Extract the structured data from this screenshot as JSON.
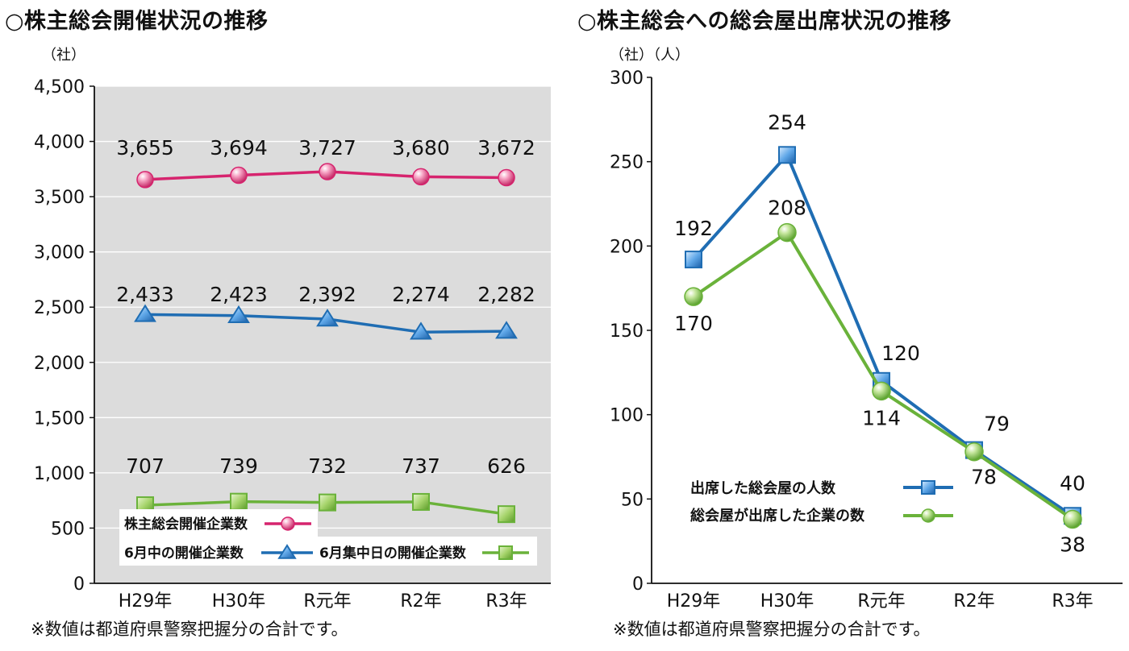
{
  "left": {
    "title": "○株主総会開催状況の推移",
    "note": "※数値は都道府県警察把握分の合計です。",
    "y_unit": "（社）"
  },
  "right": {
    "title": "○株主総会への総会屋出席状況の推移",
    "note": "※数値は都道府県警察把握分の合計です。",
    "y_unit": "（社）（人）"
  },
  "colors": {
    "pink": "#d6246e",
    "blue": "#1f6db3",
    "green": "#6ab23a",
    "plot_bg": "#dcdcdc"
  },
  "chart_data": [
    {
      "type": "line",
      "title": "○株主総会開催状況の推移",
      "ylabel": "（社）",
      "categories": [
        "H29年",
        "H30年",
        "R元年",
        "R2年",
        "R3年"
      ],
      "ylim": [
        0,
        4500
      ],
      "yticks": [
        "0",
        "500",
        "1,000",
        "1,500",
        "2,000",
        "2,500",
        "3,000",
        "3,500",
        "4,000",
        "4,500"
      ],
      "grid": true,
      "series": [
        {
          "name": "株主総会開催企業数",
          "values": [
            3655,
            3694,
            3727,
            3680,
            3672
          ],
          "labels": [
            "3,655",
            "3,694",
            "3,727",
            "3,680",
            "3,672"
          ],
          "color": "#d6246e",
          "marker": "circle"
        },
        {
          "name": "6月中の開催企業数",
          "values": [
            2433,
            2423,
            2392,
            2274,
            2282
          ],
          "labels": [
            "2,433",
            "2,423",
            "2,392",
            "2,274",
            "2,282"
          ],
          "color": "#1f6db3",
          "marker": "triangle"
        },
        {
          "name": "6月集中日の開催企業数",
          "values": [
            707,
            739,
            732,
            737,
            626
          ],
          "labels": [
            "707",
            "739",
            "732",
            "737",
            "626"
          ],
          "color": "#6ab23a",
          "marker": "square"
        }
      ],
      "legend": "bottom"
    },
    {
      "type": "line",
      "title": "○株主総会への総会屋出席状況の推移",
      "ylabel": "（社）（人）",
      "categories": [
        "H29年",
        "H30年",
        "R元年",
        "R2年",
        "R3年"
      ],
      "ylim": [
        0,
        300
      ],
      "yticks": [
        "0",
        "50",
        "100",
        "150",
        "200",
        "250",
        "300"
      ],
      "grid": false,
      "series": [
        {
          "name": "出席した総会屋の人数",
          "values": [
            192,
            254,
            120,
            79,
            40
          ],
          "labels": [
            "192",
            "254",
            "120",
            "79",
            "40"
          ],
          "color": "#1f6db3",
          "marker": "square"
        },
        {
          "name": "総会屋が出席した企業の数",
          "values": [
            170,
            208,
            114,
            78,
            38
          ],
          "labels": [
            "170",
            "208",
            "114",
            "78",
            "38"
          ],
          "color": "#6ab23a",
          "marker": "circle"
        }
      ],
      "legend": "bottom-left"
    }
  ]
}
